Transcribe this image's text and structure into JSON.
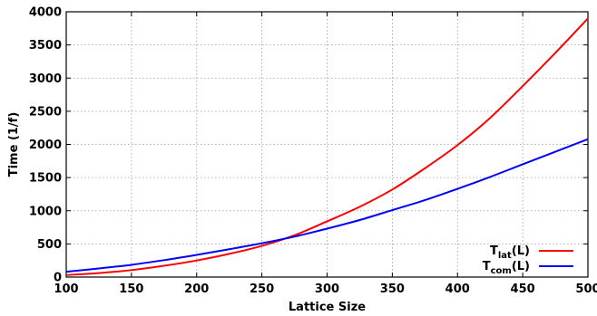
{
  "chart_data": {
    "type": "line",
    "title": "",
    "xlabel": "Lattice Size",
    "ylabel": "Time (1/f)",
    "xlim": [
      100,
      500
    ],
    "ylim": [
      0,
      4000
    ],
    "xticks": [
      "100",
      "150",
      "200",
      "250",
      "300",
      "350",
      "400",
      "450",
      "500"
    ],
    "yticks": [
      "0",
      "500",
      "1000",
      "1500",
      "2000",
      "2500",
      "3000",
      "3500",
      "4000"
    ],
    "grid": true,
    "legend_position": "bottom-right",
    "series": [
      {
        "name_main": "T",
        "name_sub": "lat",
        "name_suffix": "(L)",
        "color": "#ff0000",
        "x": [
          100,
          125,
          150,
          175,
          200,
          225,
          250,
          275,
          300,
          325,
          350,
          375,
          400,
          425,
          450,
          475,
          500
        ],
        "y": [
          30,
          60,
          105,
          170,
          250,
          350,
          470,
          630,
          840,
          1060,
          1320,
          1640,
          1990,
          2400,
          2880,
          3380,
          3900
        ]
      },
      {
        "name_main": "T",
        "name_sub": "com",
        "name_suffix": "(L)",
        "color": "#0000ff",
        "x": [
          100,
          125,
          150,
          175,
          200,
          225,
          250,
          275,
          300,
          325,
          350,
          375,
          400,
          425,
          450,
          475,
          500
        ],
        "y": [
          80,
          130,
          185,
          255,
          335,
          420,
          510,
          610,
          730,
          860,
          1010,
          1160,
          1330,
          1510,
          1700,
          1890,
          2080
        ]
      }
    ]
  }
}
